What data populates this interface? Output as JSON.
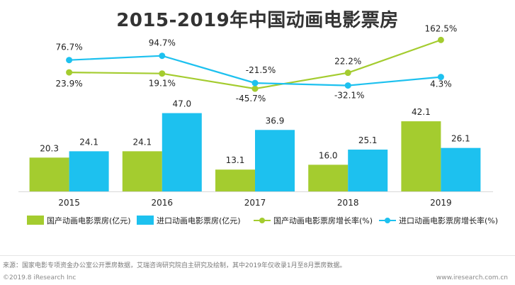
{
  "chart_data": {
    "type": "bar",
    "title": "2015-2019年中国动画电影票房",
    "categories": [
      "2015",
      "2016",
      "2017",
      "2018",
      "2019"
    ],
    "series": [
      {
        "name": "国产动画电影票房(亿元)",
        "kind": "bar",
        "values": [
          20.3,
          24.1,
          13.1,
          16.0,
          42.1
        ],
        "labels": [
          "20.3",
          "24.1",
          "13.1",
          "16.0",
          "42.1"
        ],
        "color": "#a4cc2f"
      },
      {
        "name": "进口动画电影票房(亿元)",
        "kind": "bar",
        "values": [
          24.1,
          47.0,
          36.9,
          25.1,
          26.1
        ],
        "labels": [
          "24.1",
          "47.0",
          "36.9",
          "25.1",
          "26.1"
        ],
        "color": "#1dc1ef"
      },
      {
        "name": "国产动画电影票房增长率(%)",
        "kind": "line",
        "values": [
          23.9,
          19.1,
          -45.7,
          22.2,
          162.5
        ],
        "labels": [
          "23.9%",
          "19.1%",
          "-45.7%",
          "22.2%",
          "162.5%"
        ],
        "color": "#a4cc2f"
      },
      {
        "name": "进口动画电影票房增长率(%)",
        "kind": "line",
        "values": [
          76.7,
          94.7,
          -21.5,
          -32.1,
          4.3
        ],
        "labels": [
          "76.7%",
          "94.7%",
          "-21.5%",
          "-32.1%",
          "4.3%"
        ],
        "color": "#1dc1ef"
      }
    ],
    "legend": "bottom",
    "grid": false
  },
  "footer": {
    "source": "来源：国家电影专项资金办公室公开票房数据，艾瑞咨询研究院自主研究及绘制，其中2019年仅收录1月至8月票房数据。",
    "copyright": "©2019.8 iResearch Inc",
    "site": "www.iresearch.com.cn"
  }
}
